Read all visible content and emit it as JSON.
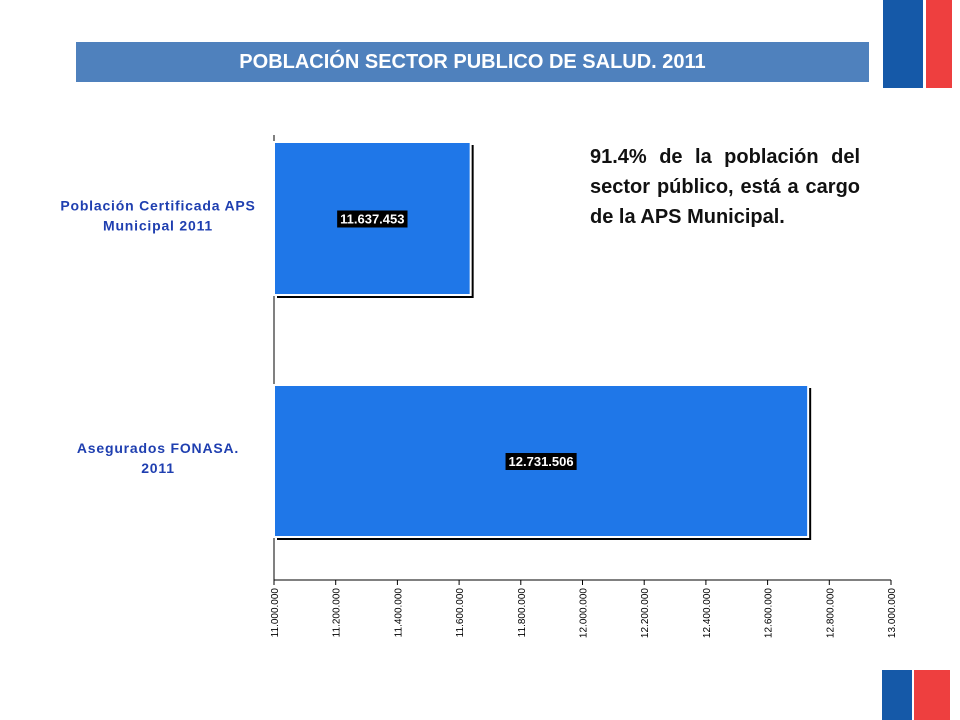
{
  "header": {
    "title": "POBLACIÓN SECTOR PUBLICO DE SALUD. 2011"
  },
  "annotation": {
    "text": "91.4% de la población del sector público, está a cargo de la APS Municipal."
  },
  "colors": {
    "title_bar": "#4f81bd",
    "bar_fill": "#1f77e8",
    "flag_blue": "#1559a8",
    "flag_red": "#ee3f3f",
    "category_text": "#1f3fb0"
  },
  "chart_data": {
    "type": "bar",
    "orientation": "horizontal",
    "categories": [
      {
        "lines": [
          "Población Certificada APS",
          "Municipal 2011"
        ]
      },
      {
        "lines": [
          "Asegurados FONASA.",
          "2011"
        ]
      }
    ],
    "values": [
      11637453,
      12731506
    ],
    "value_labels": [
      "11.637.453",
      "12.731.506"
    ],
    "xlim": [
      11000000,
      13000000
    ],
    "xticks": [
      11000000,
      11200000,
      11400000,
      11600000,
      11800000,
      12000000,
      12200000,
      12400000,
      12600000,
      12800000,
      13000000
    ],
    "xtick_labels": [
      "11.000.000",
      "11.200.000",
      "11.400.000",
      "11.600.000",
      "11.800.000",
      "12.000.000",
      "12.200.000",
      "12.400.000",
      "12.600.000",
      "12.800.000",
      "13.000.000"
    ],
    "grid": false,
    "legend": "none"
  }
}
